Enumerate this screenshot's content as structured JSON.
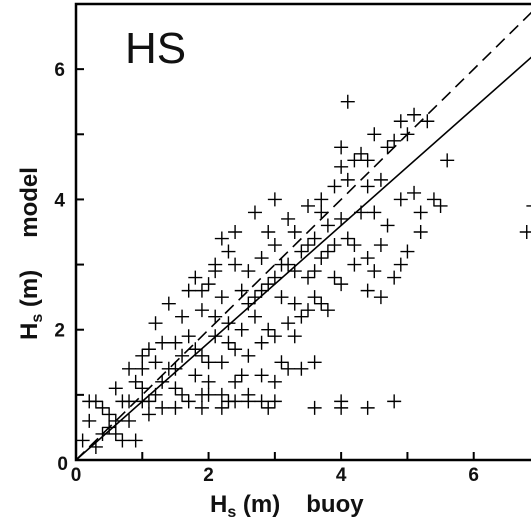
{
  "chart_data": {
    "type": "scatter",
    "title": "HS",
    "xlabel": {
      "symbol": "H",
      "subscript": "s",
      "unit": " (m)",
      "qualifier": "buoy"
    },
    "ylabel": {
      "symbol": "H",
      "subscript": "s",
      "unit": " (m)",
      "qualifier": "model"
    },
    "xlim": [
      0,
      7
    ],
    "ylim": [
      0,
      7
    ],
    "x_ticks": [
      "0",
      "2",
      "4",
      "6"
    ],
    "y_ticks": [
      "0",
      "2",
      "4",
      "6"
    ],
    "origin_tick": "0",
    "grid": false,
    "marker": "plus",
    "reference_lines": [
      {
        "style": "dashed",
        "x": [
          0,
          7
        ],
        "y": [
          0,
          7
        ]
      },
      {
        "style": "solid",
        "x": [
          0,
          7
        ],
        "y": [
          0,
          6.3
        ]
      }
    ],
    "series": [
      {
        "points": [
          [
            0.1,
            0.3
          ],
          [
            0.2,
            0.6
          ],
          [
            0.3,
            0.9
          ],
          [
            0.4,
            0.8
          ],
          [
            0.5,
            0.5
          ],
          [
            0.6,
            0.4
          ],
          [
            0.7,
            0.9
          ],
          [
            0.8,
            0.6
          ],
          [
            0.9,
            0.3
          ],
          [
            1.0,
            0.9
          ],
          [
            0.2,
            0.9
          ],
          [
            0.4,
            0.4
          ],
          [
            0.6,
            0.6
          ],
          [
            0.8,
            0.9
          ],
          [
            1.0,
            1.1
          ],
          [
            1.1,
            0.7
          ],
          [
            1.2,
            1.0
          ],
          [
            1.3,
            1.2
          ],
          [
            0.9,
            1.2
          ],
          [
            1.4,
            1.4
          ],
          [
            1.5,
            1.1
          ],
          [
            1.6,
            1.6
          ],
          [
            1.2,
            1.5
          ],
          [
            1.0,
            1.4
          ],
          [
            1.8,
            1.3
          ],
          [
            1.7,
            1.9
          ],
          [
            1.5,
            1.8
          ],
          [
            1.9,
            1.6
          ],
          [
            2.0,
            1.2
          ],
          [
            2.1,
            1.9
          ],
          [
            2.2,
            1.5
          ],
          [
            1.3,
            1.8
          ],
          [
            1.6,
            2.2
          ],
          [
            1.9,
            2.3
          ],
          [
            2.3,
            2.1
          ],
          [
            2.4,
            1.7
          ],
          [
            2.5,
            2.0
          ],
          [
            2.6,
            2.4
          ],
          [
            2.2,
            2.5
          ],
          [
            2.0,
            2.7
          ],
          [
            2.7,
            2.2
          ],
          [
            2.8,
            2.6
          ],
          [
            2.9,
            2.0
          ],
          [
            3.0,
            2.8
          ],
          [
            3.1,
            2.5
          ],
          [
            2.6,
            2.9
          ],
          [
            2.4,
            3.0
          ],
          [
            3.2,
            3.0
          ],
          [
            3.3,
            2.4
          ],
          [
            3.4,
            3.2
          ],
          [
            3.0,
            3.3
          ],
          [
            3.5,
            2.8
          ],
          [
            3.6,
            3.4
          ],
          [
            2.8,
            3.1
          ],
          [
            3.7,
            3.1
          ],
          [
            3.8,
            3.6
          ],
          [
            3.9,
            3.3
          ],
          [
            3.3,
            3.5
          ],
          [
            4.0,
            3.7
          ],
          [
            4.1,
            3.4
          ],
          [
            1.4,
            2.4
          ],
          [
            1.2,
            2.1
          ],
          [
            1.7,
            2.6
          ],
          [
            1.1,
            1.7
          ],
          [
            0.8,
            1.4
          ],
          [
            0.6,
            1.1
          ],
          [
            2.1,
            2.9
          ],
          [
            2.3,
            3.2
          ],
          [
            2.9,
            3.5
          ],
          [
            1.8,
            2.8
          ],
          [
            2.5,
            1.3
          ],
          [
            2.2,
            1.0
          ],
          [
            2.0,
            1.0
          ],
          [
            1.7,
            0.9
          ],
          [
            1.9,
            0.8
          ],
          [
            2.6,
            1.6
          ],
          [
            2.8,
            1.8
          ],
          [
            3.0,
            1.9
          ],
          [
            3.2,
            2.1
          ],
          [
            3.4,
            2.2
          ],
          [
            3.6,
            2.5
          ],
          [
            3.8,
            2.3
          ],
          [
            4.0,
            2.7
          ],
          [
            4.2,
            3.0
          ],
          [
            3.5,
            3.9
          ],
          [
            3.7,
            4.0
          ],
          [
            3.9,
            4.2
          ],
          [
            4.1,
            4.3
          ],
          [
            4.4,
            4.2
          ],
          [
            4.3,
            3.8
          ],
          [
            0.3,
            0.2
          ],
          [
            0.5,
            0.7
          ],
          [
            0.7,
            0.3
          ],
          [
            1.1,
            0.9
          ],
          [
            1.3,
            0.8
          ],
          [
            1.5,
            1.4
          ],
          [
            1.6,
            1.0
          ],
          [
            1.8,
            1.7
          ],
          [
            2.0,
            1.5
          ],
          [
            2.1,
            2.2
          ],
          [
            2.3,
            1.8
          ],
          [
            2.5,
            2.6
          ],
          [
            2.7,
            2.5
          ],
          [
            2.9,
            2.7
          ],
          [
            3.1,
            3.0
          ],
          [
            3.3,
            2.9
          ],
          [
            3.5,
            3.3
          ],
          [
            3.6,
            2.9
          ],
          [
            3.8,
            3.2
          ],
          [
            1.0,
            1.6
          ],
          [
            4.2,
            4.6
          ],
          [
            4.0,
            4.8
          ],
          [
            4.1,
            5.5
          ],
          [
            4.5,
            5.0
          ],
          [
            4.7,
            4.8
          ],
          [
            4.9,
            5.2
          ],
          [
            5.0,
            5.0
          ],
          [
            5.1,
            5.3
          ],
          [
            5.3,
            5.2
          ],
          [
            4.6,
            4.3
          ],
          [
            4.9,
            4.0
          ],
          [
            5.1,
            4.1
          ],
          [
            5.2,
            3.8
          ],
          [
            5.5,
            3.9
          ],
          [
            5.4,
            4.0
          ],
          [
            5.6,
            4.6
          ],
          [
            4.8,
            4.9
          ],
          [
            4.3,
            4.7
          ],
          [
            4.0,
            4.5
          ],
          [
            4.4,
            4.6
          ],
          [
            3.7,
            3.8
          ],
          [
            4.5,
            3.8
          ],
          [
            4.4,
            3.1
          ],
          [
            4.6,
            3.3
          ],
          [
            4.7,
            3.6
          ],
          [
            4.2,
            3.3
          ],
          [
            4.5,
            2.9
          ],
          [
            4.6,
            2.5
          ],
          [
            4.4,
            2.6
          ],
          [
            4.8,
            2.8
          ],
          [
            4.9,
            3.0
          ],
          [
            5.0,
            3.2
          ],
          [
            5.2,
            3.5
          ],
          [
            3.0,
            4.0
          ],
          [
            3.2,
            3.7
          ],
          [
            2.7,
            3.8
          ],
          [
            2.4,
            3.5
          ],
          [
            2.2,
            3.4
          ],
          [
            2.1,
            3.0
          ],
          [
            1.9,
            2.6
          ],
          [
            3.9,
            2.8
          ],
          [
            3.7,
            2.4
          ],
          [
            3.5,
            2.3
          ],
          [
            3.3,
            1.9
          ],
          [
            3.1,
            1.5
          ],
          [
            3.0,
            1.2
          ],
          [
            2.8,
            1.3
          ],
          [
            2.6,
            1.0
          ],
          [
            2.4,
            1.2
          ],
          [
            2.3,
            0.9
          ],
          [
            6.9,
            3.9
          ],
          [
            7.0,
            3.7
          ],
          [
            6.8,
            3.5
          ],
          [
            7.0,
            3.8
          ],
          [
            2.4,
            0.9
          ],
          [
            2.6,
            0.9
          ],
          [
            2.8,
            0.9
          ],
          [
            3.0,
            0.9
          ],
          [
            2.9,
            0.8
          ],
          [
            3.6,
            0.8
          ],
          [
            4.0,
            0.9
          ],
          [
            4.0,
            0.8
          ],
          [
            4.4,
            0.8
          ],
          [
            4.8,
            0.9
          ],
          [
            3.4,
            1.4
          ],
          [
            3.2,
            1.4
          ],
          [
            3.6,
            1.5
          ],
          [
            2.2,
            0.8
          ],
          [
            1.9,
            1.0
          ],
          [
            1.5,
            0.8
          ]
        ]
      }
    ]
  }
}
